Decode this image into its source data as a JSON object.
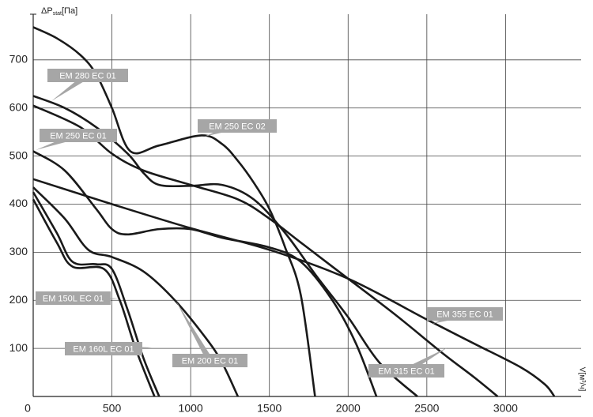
{
  "chart_data": {
    "type": "line",
    "ylabel": [
      "ΔP",
      "stat",
      "[Па]"
    ],
    "xlabel": "V[м³/ч]",
    "xlim": [
      0,
      3480
    ],
    "ylim": [
      0,
      795
    ],
    "xticks": [
      0,
      500,
      1000,
      1500,
      2000,
      2500,
      3000
    ],
    "yticks": [
      100,
      200,
      300,
      400,
      500,
      600,
      700
    ],
    "grid": true,
    "series": [
      {
        "name": "EM 250 EC 02",
        "color": "#1a1a1a",
        "x": [
          0,
          150,
          300,
          400,
          500,
          617,
          800,
          1070,
          1200,
          1300,
          1400,
          1500,
          1600,
          1700,
          1790
        ],
        "values": [
          768,
          745,
          710,
          670,
          600,
          510,
          522,
          543,
          525,
          490,
          445,
          390,
          310,
          210,
          0
        ]
      },
      {
        "name": "EM 280 EC 01",
        "color": "#1a1a1a",
        "x": [
          0,
          200,
          400,
          600,
          700,
          800,
          1000,
          1200,
          1400,
          1600,
          1800,
          2000,
          2200,
          2440
        ],
        "values": [
          625,
          600,
          560,
          505,
          465,
          440,
          438,
          440,
          410,
          340,
          250,
          165,
          70,
          0
        ]
      },
      {
        "name": "EM 250 EC 01",
        "color": "#1a1a1a",
        "x": [
          0,
          200,
          400,
          500,
          600,
          800,
          1000,
          1200,
          1500,
          1700,
          1900,
          2050,
          2180
        ],
        "values": [
          510,
          470,
          390,
          348,
          337,
          348,
          348,
          330,
          310,
          280,
          200,
          110,
          0
        ]
      },
      {
        "name": "EM 315 EC 01",
        "color": "#1a1a1a",
        "x": [
          0,
          300,
          500,
          700,
          1000,
          1300,
          1500,
          1700,
          2000,
          2300,
          2600,
          2800,
          2950
        ],
        "values": [
          605,
          560,
          505,
          470,
          440,
          410,
          370,
          320,
          245,
          170,
          90,
          40,
          0
        ]
      },
      {
        "name": "EM 355 EC 01",
        "color": "#1a1a1a",
        "x": [
          0,
          500,
          1000,
          1500,
          2000,
          2500,
          2800,
          3100,
          3250,
          3310
        ],
        "values": [
          452,
          400,
          350,
          305,
          245,
          160,
          110,
          60,
          25,
          0
        ]
      },
      {
        "name": "EM 200 EC 01",
        "color": "#1a1a1a",
        "x": [
          0,
          200,
          350,
          500,
          700,
          900,
          1100,
          1200,
          1300
        ],
        "values": [
          435,
          370,
          305,
          290,
          260,
          200,
          120,
          70,
          0
        ]
      },
      {
        "name": "EM 160L EC 01",
        "color": "#1a1a1a",
        "x": [
          0,
          150,
          250,
          400,
          500,
          600,
          700,
          800
        ],
        "values": [
          425,
          340,
          280,
          275,
          265,
          180,
          80,
          0
        ]
      },
      {
        "name": "EM 150L EC 01",
        "color": "#1a1a1a",
        "x": [
          0,
          150,
          250,
          450,
          550,
          650,
          770
        ],
        "values": [
          410,
          320,
          270,
          265,
          200,
          100,
          0
        ]
      }
    ]
  }
}
